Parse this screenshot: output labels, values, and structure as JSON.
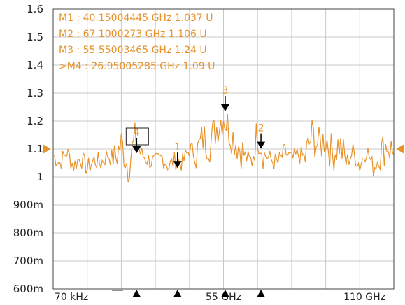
{
  "colors": {
    "trace": "#e8922a",
    "text_orange": "#e8922a",
    "grid": "#c8c8c8",
    "frame": "#444444",
    "marker": "#000000"
  },
  "chart_data": {
    "type": "line",
    "title": "",
    "xlabel": "",
    "ylabel": "",
    "x_unit": "GHz",
    "y_unit": "U",
    "xlim_ghz": [
      7e-05,
      110
    ],
    "ylim": [
      0.6,
      1.6
    ],
    "y_ticks": [
      {
        "value": 1.6,
        "label": "1.6"
      },
      {
        "value": 1.5,
        "label": "1.5"
      },
      {
        "value": 1.4,
        "label": "1.4"
      },
      {
        "value": 1.3,
        "label": "1.3"
      },
      {
        "value": 1.2,
        "label": "1.2"
      },
      {
        "value": 1.1,
        "label": "1.1"
      },
      {
        "value": 1.0,
        "label": "1"
      },
      {
        "value": 0.9,
        "label": "900m"
      },
      {
        "value": 0.8,
        "label": "800m"
      },
      {
        "value": 0.7,
        "label": "700m"
      },
      {
        "value": 0.6,
        "label": "600m"
      }
    ],
    "x_tick_labels": [
      {
        "value": 7e-05,
        "label": "70 kHz"
      },
      {
        "value": 55,
        "label": "55 GHz"
      },
      {
        "value": 110,
        "label": "110 GHz"
      }
    ],
    "x_grid_divisions": 10,
    "grid": true,
    "reference_level": 1.1,
    "series": [
      {
        "x": [
          0,
          2.2,
          4.4,
          6.6,
          8.8,
          11,
          13.2,
          15.4,
          17.6,
          19.8,
          22,
          24.2,
          26.4,
          28.6,
          30.8,
          33,
          35.2,
          37.4,
          39.6,
          41.8,
          44,
          46.2,
          48.4,
          50.6,
          52.8,
          55,
          57.2,
          59.4,
          61.6,
          63.8,
          66,
          68.2,
          70.4,
          72.6,
          74.8,
          77,
          79.2,
          81.4,
          83.6,
          85.8,
          88,
          90.2,
          92.4,
          94.6,
          96.8,
          99,
          101.2,
          103.4,
          105.6,
          107.8,
          110
        ],
        "y": [
          1.08,
          1.05,
          1.09,
          1.04,
          1.07,
          1.03,
          1.06,
          1.05,
          1.08,
          1.06,
          1.12,
          1.04,
          1.13,
          1.08,
          1.06,
          1.05,
          1.07,
          1.04,
          1.06,
          1.05,
          1.1,
          1.08,
          1.14,
          1.12,
          1.18,
          1.22,
          1.16,
          1.12,
          1.08,
          1.05,
          1.16,
          1.08,
          1.06,
          1.05,
          1.09,
          1.06,
          1.08,
          1.07,
          1.15,
          1.11,
          1.14,
          1.08,
          1.12,
          1.05,
          1.09,
          1.04,
          1.1,
          1.03,
          1.08,
          1.12,
          1.08
        ]
      }
    ],
    "markers": [
      {
        "id": "1",
        "x": 40.15004445,
        "y": 1.037,
        "readout": "M1 :  40.15004445 GHz  1.037  U"
      },
      {
        "id": "2",
        "x": 67.1000273,
        "y": 1.106,
        "readout": "M2 :  67.1000273 GHz  1.106  U"
      },
      {
        "id": "3",
        "x": 55.55003465,
        "y": 1.24,
        "readout": "M3 :  55.55003465 GHz  1.24  U"
      },
      {
        "id": "4",
        "x": 26.95005285,
        "y": 1.09,
        "readout": ">M4 :  26.95005285 GHz  1.09  U"
      }
    ]
  }
}
